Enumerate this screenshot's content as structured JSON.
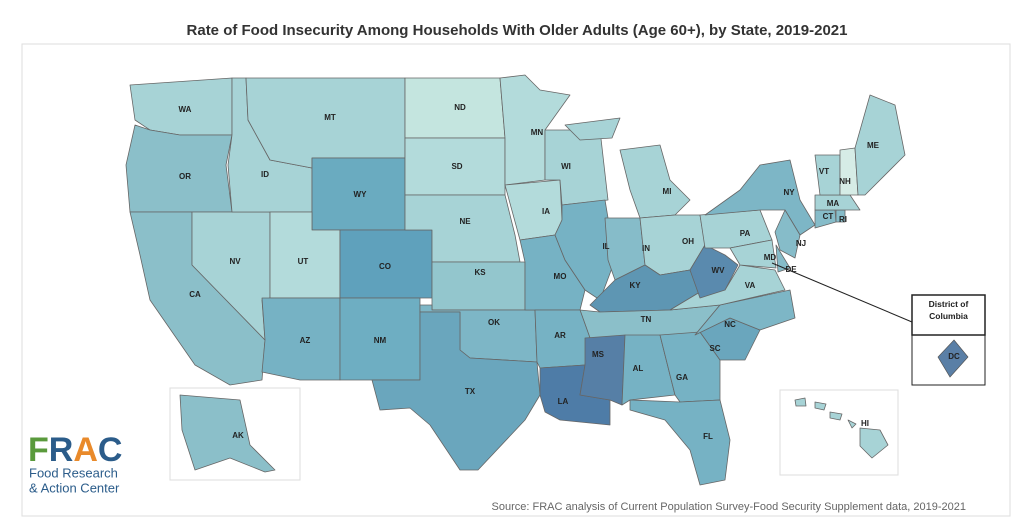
{
  "title": "Rate of Food Insecurity Among Households With Older Adults (Age 60+), by State, 2019-2021",
  "states": [
    {
      "label": "WA",
      "color": "#a7d3d6"
    },
    {
      "label": "OR",
      "color": "#8bbfc9"
    },
    {
      "label": "CA",
      "color": "#8bbfc9"
    },
    {
      "label": "NV",
      "color": "#a7d3d6"
    },
    {
      "label": "ID",
      "color": "#a7d3d6"
    },
    {
      "label": "MT",
      "color": "#a7d3d6"
    },
    {
      "label": "WY",
      "color": "#6aabc0"
    },
    {
      "label": "UT",
      "color": "#b3dbdb"
    },
    {
      "label": "CO",
      "color": "#5fa1bc"
    },
    {
      "label": "AZ",
      "color": "#76b2c4"
    },
    {
      "label": "NM",
      "color": "#6eaec2"
    },
    {
      "label": "ND",
      "color": "#c4e5df"
    },
    {
      "label": "SD",
      "color": "#b3dbdb"
    },
    {
      "label": "NE",
      "color": "#a7d3d6"
    },
    {
      "label": "KS",
      "color": "#93c6cd"
    },
    {
      "label": "OK",
      "color": "#7db6c6"
    },
    {
      "label": "TX",
      "color": "#6aa6bd"
    },
    {
      "label": "MN",
      "color": "#b3dbdb"
    },
    {
      "label": "IA",
      "color": "#b3dbdb"
    },
    {
      "label": "MO",
      "color": "#76b2c4"
    },
    {
      "label": "WI",
      "color": "#a7d3d6"
    },
    {
      "label": "IL",
      "color": "#76b2c4"
    },
    {
      "label": "IN",
      "color": "#86bcc9"
    },
    {
      "label": "MI",
      "color": "#a7d3d6"
    },
    {
      "label": "OH",
      "color": "#a7d3d6"
    },
    {
      "label": "KY",
      "color": "#5e96b3"
    },
    {
      "label": "TN",
      "color": "#8bbfc9"
    },
    {
      "label": "AR",
      "color": "#76b2c4"
    },
    {
      "label": "LA",
      "color": "#4e7ca7"
    },
    {
      "label": "MS",
      "color": "#567fa6"
    },
    {
      "label": "AL",
      "color": "#76b2c4"
    },
    {
      "label": "GA",
      "color": "#76b2c4"
    },
    {
      "label": "FL",
      "color": "#76b2c4"
    },
    {
      "label": "SC",
      "color": "#6aa6bd"
    },
    {
      "label": "NC",
      "color": "#7db6c6"
    },
    {
      "label": "VA",
      "color": "#a7d3d6"
    },
    {
      "label": "WV",
      "color": "#5a8aae"
    },
    {
      "label": "PA",
      "color": "#a7d3d6"
    },
    {
      "label": "NY",
      "color": "#7db6c6"
    },
    {
      "label": "MD",
      "color": "#a7d3d6"
    },
    {
      "label": "DE",
      "color": "#86bcc9"
    },
    {
      "label": "NJ",
      "color": "#86bcc9"
    },
    {
      "label": "CT",
      "color": "#86bcc9"
    },
    {
      "label": "RI",
      "color": "#86bcc9"
    },
    {
      "label": "MA",
      "color": "#a7d3d6"
    },
    {
      "label": "VT",
      "color": "#a7d3d6"
    },
    {
      "label": "NH",
      "color": "#d6ece6"
    },
    {
      "label": "ME",
      "color": "#a7d3d6"
    },
    {
      "label": "AK",
      "color": "#8bbfc9"
    },
    {
      "label": "HI",
      "color": "#a7d3d6"
    }
  ],
  "dc_callout": {
    "title": "District of Columbia",
    "label": "DC",
    "color": "#5a7fa6"
  },
  "logo": {
    "mark": "FRAC",
    "line1": "Food Research",
    "line2": "& Action Center"
  },
  "source": "Source: FRAC analysis of Current Population Survey-Food Security Supplement data, 2019-2021"
}
